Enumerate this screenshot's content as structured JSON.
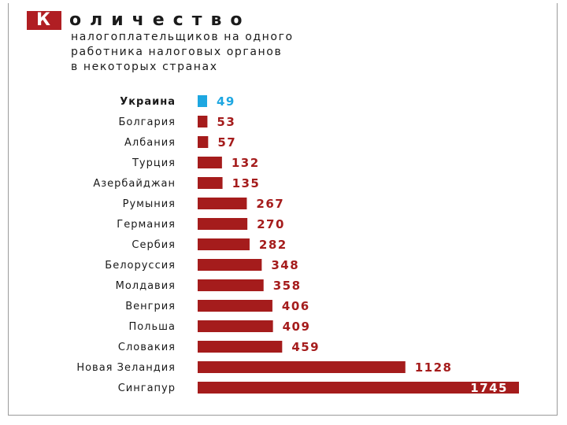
{
  "title": {
    "first_letter": "К",
    "rest": "оличество",
    "subtitle_lines": [
      "налогоплательщиков на одного",
      "работника налоговых органов",
      "в некоторых странах"
    ]
  },
  "colors": {
    "bar": "#a51c1c",
    "highlight": "#1ea7e1",
    "title_box": "#b01e23"
  },
  "chart_data": {
    "type": "bar",
    "orientation": "horizontal",
    "title": "Количество налогоплательщиков на одного работника налоговых органов в некоторых странах",
    "categories": [
      "Украина",
      "Болгария",
      "Албания",
      "Турция",
      "Азербайджан",
      "Румыния",
      "Германия",
      "Сербия",
      "Белоруссия",
      "Молдавия",
      "Венгрия",
      "Польша",
      "Словакия",
      "Новая Зеландия",
      "Сингапур"
    ],
    "values": [
      49,
      53,
      57,
      132,
      135,
      267,
      270,
      282,
      348,
      358,
      406,
      409,
      459,
      1128,
      1745
    ],
    "highlighted_category": "Украина",
    "xlim": [
      0,
      1745
    ],
    "grid": false,
    "legend": "none"
  }
}
